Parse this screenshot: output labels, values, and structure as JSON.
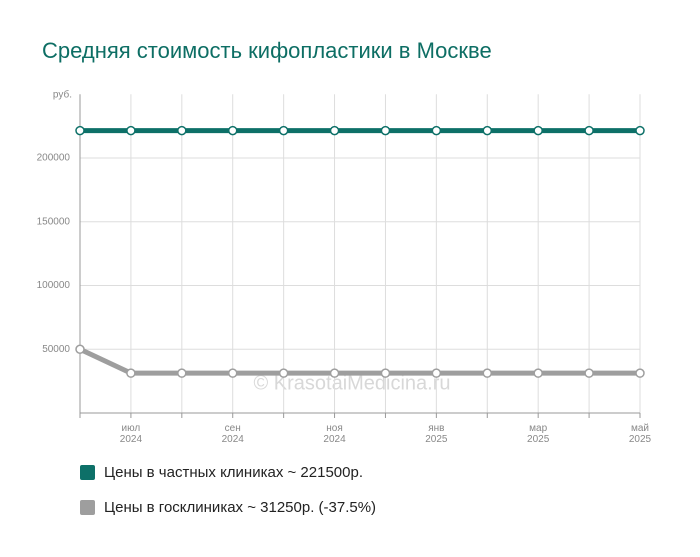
{
  "chart_data": {
    "type": "line",
    "title": "Средняя стоимость кифопластики в Москве",
    "y_label": "руб.",
    "watermark": "© KrasotaiMedicina.ru",
    "categories": [
      null,
      "июл 2024",
      null,
      "сен 2024",
      null,
      "ноя 2024",
      null,
      "янв 2025",
      null,
      "мар 2025",
      null,
      "май 2025"
    ],
    "series": [
      {
        "name": "Цены в частных клиниках ~ 221500р.",
        "color": "#0d7068",
        "values": [
          221500,
          221500,
          221500,
          221500,
          221500,
          221500,
          221500,
          221500,
          221500,
          221500,
          221500,
          221500
        ]
      },
      {
        "name": "Цены в госклиниках ~ 31250р. (-37.5%)",
        "color": "#9e9e9e",
        "values": [
          50000,
          31250,
          31250,
          31250,
          31250,
          31250,
          31250,
          31250,
          31250,
          31250,
          31250,
          31250
        ]
      }
    ],
    "ylim": [
      0,
      250000
    ],
    "yticks": [
      50000,
      100000,
      150000,
      200000
    ],
    "grid": true
  }
}
